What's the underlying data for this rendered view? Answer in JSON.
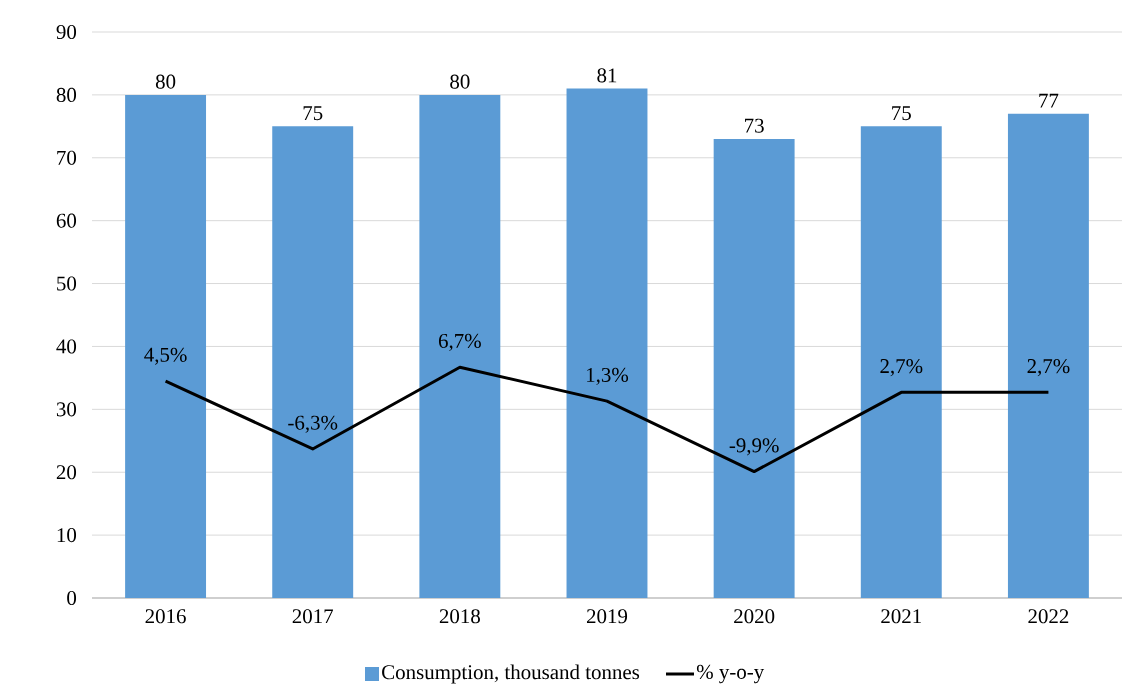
{
  "chart_data": {
    "type": "bar",
    "categories": [
      "2016",
      "2017",
      "2018",
      "2019",
      "2020",
      "2021",
      "2022"
    ],
    "series": [
      {
        "name": "Consumption, thousand tonnes",
        "color": "#5b9bd5",
        "values": [
          80,
          75,
          80,
          81,
          73,
          75,
          77
        ],
        "value_labels": [
          "80",
          "75",
          "80",
          "81",
          "73",
          "75",
          "77"
        ]
      },
      {
        "name": "% y-o-y",
        "type": "line",
        "axis": "y2",
        "color": "#000000",
        "values": [
          4.5,
          -6.3,
          6.7,
          1.3,
          -9.9,
          2.7,
          2.7
        ],
        "value_labels": [
          "4,5%",
          "-6,3%",
          "6,7%",
          "1,3%",
          "-9,9%",
          "2,7%",
          "2,7%"
        ]
      }
    ],
    "ylim": [
      0,
      90
    ],
    "yticks": [
      0,
      10,
      20,
      30,
      40,
      50,
      60,
      70,
      80,
      90
    ],
    "y2lim": [
      -30,
      60
    ],
    "grid": "y",
    "legend": "bottom",
    "marker": "none",
    "line_style": "solid"
  }
}
